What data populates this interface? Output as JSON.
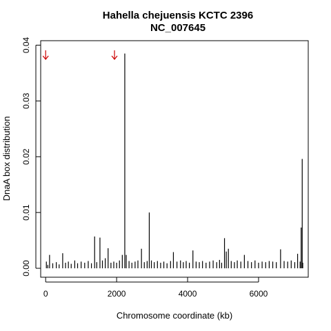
{
  "chart_data": {
    "type": "bar",
    "title": "Hahella chejuensis KCTC 2396",
    "subtitle": "NC_007645",
    "xlabel": "Chromosome coordinate (kb)",
    "ylabel": "DnaA box distribution",
    "xlim": [
      -140,
      7400
    ],
    "ylim": [
      -0.0016,
      0.0408
    ],
    "x_ticks": [
      0,
      2000,
      4000,
      6000
    ],
    "y_ticks": [
      0.0,
      0.01,
      0.02,
      0.03,
      0.04
    ],
    "y_tick_labels": [
      "0.00",
      "0.01",
      "0.02",
      "0.03",
      "0.04"
    ],
    "grid": false,
    "legend": "none",
    "bar_color": "#000000",
    "arrow_color": "#cc0000",
    "arrows_x_kb": [
      0,
      1940
    ],
    "points": [
      {
        "x": 20,
        "y": 0.0012
      },
      {
        "x": 60,
        "y": 0.0006
      },
      {
        "x": 110,
        "y": 0.0024
      },
      {
        "x": 200,
        "y": 0.0009
      },
      {
        "x": 300,
        "y": 0.0011
      },
      {
        "x": 380,
        "y": 0.0007
      },
      {
        "x": 480,
        "y": 0.0027
      },
      {
        "x": 560,
        "y": 0.001
      },
      {
        "x": 640,
        "y": 0.0012
      },
      {
        "x": 720,
        "y": 0.0008
      },
      {
        "x": 820,
        "y": 0.0014
      },
      {
        "x": 900,
        "y": 0.0009
      },
      {
        "x": 1000,
        "y": 0.0012
      },
      {
        "x": 1100,
        "y": 0.001
      },
      {
        "x": 1200,
        "y": 0.0013
      },
      {
        "x": 1290,
        "y": 0.0009
      },
      {
        "x": 1380,
        "y": 0.0057
      },
      {
        "x": 1440,
        "y": 0.0011
      },
      {
        "x": 1530,
        "y": 0.0055
      },
      {
        "x": 1600,
        "y": 0.0014
      },
      {
        "x": 1680,
        "y": 0.0018
      },
      {
        "x": 1760,
        "y": 0.0036
      },
      {
        "x": 1840,
        "y": 0.001
      },
      {
        "x": 1920,
        "y": 0.0012
      },
      {
        "x": 2000,
        "y": 0.001
      },
      {
        "x": 2080,
        "y": 0.0014
      },
      {
        "x": 2160,
        "y": 0.0024
      },
      {
        "x": 2230,
        "y": 0.0385
      },
      {
        "x": 2270,
        "y": 0.0024
      },
      {
        "x": 2350,
        "y": 0.0013
      },
      {
        "x": 2430,
        "y": 0.001
      },
      {
        "x": 2520,
        "y": 0.0012
      },
      {
        "x": 2600,
        "y": 0.0014
      },
      {
        "x": 2700,
        "y": 0.0035
      },
      {
        "x": 2780,
        "y": 0.0011
      },
      {
        "x": 2860,
        "y": 0.0013
      },
      {
        "x": 2920,
        "y": 0.01
      },
      {
        "x": 2980,
        "y": 0.0014
      },
      {
        "x": 3060,
        "y": 0.0011
      },
      {
        "x": 3150,
        "y": 0.0013
      },
      {
        "x": 3240,
        "y": 0.001
      },
      {
        "x": 3330,
        "y": 0.0012
      },
      {
        "x": 3420,
        "y": 0.0009
      },
      {
        "x": 3520,
        "y": 0.0013
      },
      {
        "x": 3600,
        "y": 0.0029
      },
      {
        "x": 3700,
        "y": 0.0012
      },
      {
        "x": 3800,
        "y": 0.0014
      },
      {
        "x": 3880,
        "y": 0.0011
      },
      {
        "x": 3960,
        "y": 0.0013
      },
      {
        "x": 4050,
        "y": 0.001
      },
      {
        "x": 4150,
        "y": 0.0032
      },
      {
        "x": 4240,
        "y": 0.0012
      },
      {
        "x": 4330,
        "y": 0.0011
      },
      {
        "x": 4420,
        "y": 0.0013
      },
      {
        "x": 4520,
        "y": 0.001
      },
      {
        "x": 4620,
        "y": 0.0012
      },
      {
        "x": 4720,
        "y": 0.0014
      },
      {
        "x": 4820,
        "y": 0.0011
      },
      {
        "x": 4900,
        "y": 0.0015
      },
      {
        "x": 4960,
        "y": 0.001
      },
      {
        "x": 5040,
        "y": 0.0054
      },
      {
        "x": 5090,
        "y": 0.003
      },
      {
        "x": 5150,
        "y": 0.0035
      },
      {
        "x": 5230,
        "y": 0.0013
      },
      {
        "x": 5320,
        "y": 0.0011
      },
      {
        "x": 5400,
        "y": 0.0014
      },
      {
        "x": 5500,
        "y": 0.0012
      },
      {
        "x": 5600,
        "y": 0.0024
      },
      {
        "x": 5700,
        "y": 0.0013
      },
      {
        "x": 5800,
        "y": 0.0011
      },
      {
        "x": 5900,
        "y": 0.0014
      },
      {
        "x": 6000,
        "y": 0.001
      },
      {
        "x": 6100,
        "y": 0.0012
      },
      {
        "x": 6200,
        "y": 0.0011
      },
      {
        "x": 6300,
        "y": 0.0013
      },
      {
        "x": 6400,
        "y": 0.0012
      },
      {
        "x": 6500,
        "y": 0.0011
      },
      {
        "x": 6620,
        "y": 0.0034
      },
      {
        "x": 6720,
        "y": 0.0013
      },
      {
        "x": 6820,
        "y": 0.0012
      },
      {
        "x": 6920,
        "y": 0.0014
      },
      {
        "x": 7020,
        "y": 0.0011
      },
      {
        "x": 7100,
        "y": 0.0026
      },
      {
        "x": 7170,
        "y": 0.0012
      },
      {
        "x": 7200,
        "y": 0.0073
      },
      {
        "x": 7230,
        "y": 0.0196
      },
      {
        "x": 7245,
        "y": 0.001
      }
    ]
  }
}
